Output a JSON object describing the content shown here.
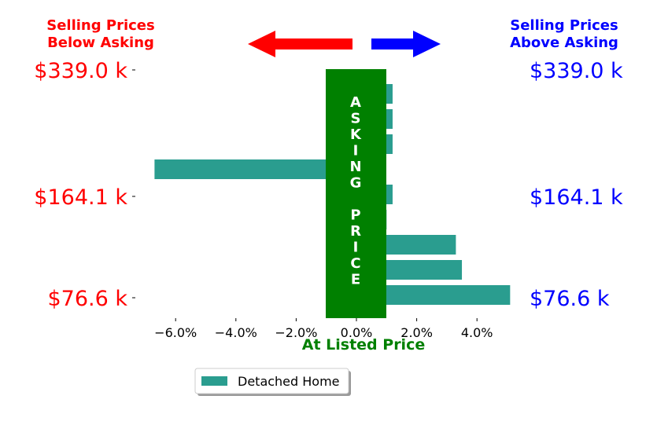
{
  "chart_data": {
    "type": "bar",
    "orientation": "horizontal",
    "xlabel": "At Listed Price",
    "x_ticks": [
      "−6.0%",
      "−4.0%",
      "−2.0%",
      "0.0%",
      "2.0%",
      "4.0%"
    ],
    "x_tick_values": [
      -6,
      -4,
      -2,
      0,
      2,
      4
    ],
    "xlim": [
      -7,
      5.3
    ],
    "series": [
      {
        "name": "Detached Home",
        "color": "#2a9d8f",
        "values": [
          1.2,
          1.2,
          1.2,
          -6.7,
          1.2,
          1.0,
          3.3,
          3.5,
          5.1
        ]
      }
    ],
    "left_labels": {
      "header": [
        "Selling Prices",
        "Below Asking"
      ],
      "color": "#ff0000",
      "prices": [
        "$339.0 k",
        "$164.1 k",
        "$76.6 k"
      ]
    },
    "right_labels": {
      "header": [
        "Selling Prices",
        "Above Asking"
      ],
      "color": "#0000ff",
      "prices": [
        "$339.0 k",
        "$164.1 k",
        "$76.6 k"
      ]
    },
    "banner": {
      "letters": [
        "A",
        "S",
        "K",
        "I",
        "N",
        "G",
        "",
        "P",
        "R",
        "I",
        "C",
        "E"
      ],
      "color": "#008000"
    },
    "arrows": {
      "left_color": "#ff0000",
      "right_color": "#0000ff"
    },
    "legend": {
      "label": "Detached Home",
      "placement": "bottom-center"
    }
  }
}
